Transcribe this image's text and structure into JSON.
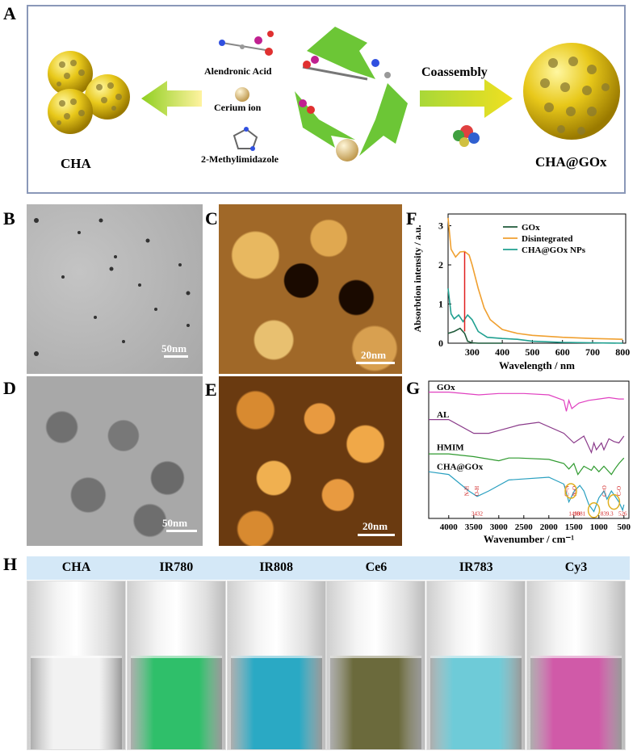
{
  "panels": {
    "A": "A",
    "B": "B",
    "C": "C",
    "D": "D",
    "E": "E",
    "F": "F",
    "G": "G",
    "H": "H"
  },
  "scheme": {
    "left_label": "CHA",
    "right_label": "CHA@GOx",
    "reagents": [
      "Alendronic Acid",
      "Cerium ion",
      "2-Methylimidazole"
    ],
    "coassembly": "Coassembly"
  },
  "micrographs": {
    "B_scale": "50nm",
    "C_scale": "20nm",
    "D_scale": "50nm",
    "E_scale": "20nm"
  },
  "chart_data": [
    {
      "type": "line",
      "panel": "F",
      "xlabel": "Wavelength / nm",
      "ylabel": "Absorbtion intensity / a.u.",
      "xlim": [
        220,
        810
      ],
      "ylim": [
        0,
        3.3
      ],
      "xticks": [
        300,
        400,
        500,
        600,
        700,
        800
      ],
      "yticks": [
        0,
        1,
        2,
        3
      ],
      "legend_position": "top-right",
      "series": [
        {
          "name": "GOx",
          "color": "#1f5a3a",
          "x": [
            220,
            240,
            260,
            275,
            285,
            300,
            320,
            350,
            400
          ],
          "y": [
            0.25,
            0.3,
            0.38,
            0.25,
            0.05,
            0.01,
            0.0,
            0.0,
            0.0
          ]
        },
        {
          "name": "Disintegrated",
          "color": "#f0a030",
          "x": [
            220,
            230,
            245,
            260,
            275,
            290,
            300,
            320,
            340,
            360,
            400,
            450,
            500,
            600,
            700,
            800
          ],
          "y": [
            3.2,
            2.4,
            2.2,
            2.33,
            2.34,
            2.25,
            2.0,
            1.4,
            0.9,
            0.6,
            0.35,
            0.25,
            0.2,
            0.15,
            0.12,
            0.1
          ]
        },
        {
          "name": "CHA@GOx NPs",
          "color": "#20a090",
          "x": [
            220,
            230,
            240,
            255,
            270,
            285,
            300,
            320,
            350,
            400,
            450,
            500,
            600,
            800
          ],
          "y": [
            1.4,
            0.75,
            0.62,
            0.72,
            0.55,
            0.72,
            0.6,
            0.3,
            0.15,
            0.12,
            0.1,
            0.05,
            0.02,
            0.0
          ]
        }
      ],
      "annotations": [
        {
          "type": "vline",
          "x": 275,
          "color": "#e02020"
        }
      ]
    },
    {
      "type": "line",
      "panel": "G",
      "xlabel": "Wavenumber / cm⁻¹",
      "ylabel": "",
      "xlim": [
        4400,
        400
      ],
      "xticks": [
        4000,
        3500,
        3000,
        2500,
        2000,
        1500,
        1000,
        500
      ],
      "series": [
        {
          "name": "GOx",
          "color": "#e040c0",
          "x": [
            4400,
            4000,
            3400,
            3000,
            2500,
            2000,
            1700,
            1650,
            1600,
            1540,
            1400,
            1200,
            1000,
            800,
            600,
            500
          ],
          "y": [
            0.92,
            0.92,
            0.9,
            0.91,
            0.91,
            0.9,
            0.86,
            0.78,
            0.86,
            0.8,
            0.84,
            0.86,
            0.87,
            0.88,
            0.87,
            0.87
          ]
        },
        {
          "name": "AL",
          "color": "#8a3a8a",
          "x": [
            4400,
            4000,
            3500,
            3200,
            3000,
            2600,
            2200,
            1700,
            1500,
            1300,
            1150,
            1100,
            1050,
            950,
            900,
            800,
            700,
            600,
            500
          ],
          "y": [
            0.72,
            0.72,
            0.62,
            0.62,
            0.64,
            0.68,
            0.7,
            0.62,
            0.55,
            0.6,
            0.48,
            0.55,
            0.5,
            0.55,
            0.5,
            0.58,
            0.56,
            0.55,
            0.6
          ]
        },
        {
          "name": "HMIM",
          "color": "#2f9a2f",
          "x": [
            4400,
            4000,
            3500,
            3000,
            2800,
            2600,
            2000,
            1700,
            1600,
            1500,
            1420,
            1300,
            1150,
            1100,
            1000,
            900,
            750,
            680,
            600,
            500
          ],
          "y": [
            0.47,
            0.47,
            0.45,
            0.42,
            0.44,
            0.44,
            0.43,
            0.4,
            0.36,
            0.4,
            0.32,
            0.38,
            0.35,
            0.38,
            0.34,
            0.38,
            0.32,
            0.36,
            0.4,
            0.44
          ]
        },
        {
          "name": "CHA@GOx",
          "color": "#2aa0c0",
          "x": [
            4400,
            4000,
            3600,
            3432,
            3200,
            2800,
            2000,
            1700,
            1600,
            1490,
            1381,
            1300,
            1200,
            1100,
            1000,
            900,
            839,
            750,
            600,
            526,
            500
          ],
          "y": [
            0.34,
            0.32,
            0.2,
            0.16,
            0.2,
            0.28,
            0.3,
            0.25,
            0.12,
            0.2,
            0.24,
            0.2,
            0.1,
            0.05,
            0.15,
            0.2,
            0.14,
            0.2,
            0.12,
            0.06,
            0.1
          ]
        }
      ],
      "peak_labels": [
        {
          "x": 3432,
          "text": "3432"
        },
        {
          "x": 1490,
          "text": "1490"
        },
        {
          "x": 1381,
          "text": "1381"
        },
        {
          "x": 839,
          "text": "839.3"
        },
        {
          "x": 526,
          "text": "526"
        }
      ],
      "bond_labels": [
        {
          "x": 3600,
          "text": "N-H"
        },
        {
          "x": 3400,
          "text": "O-H"
        },
        {
          "x": 1600,
          "text": "C=N"
        },
        {
          "x": 1450,
          "text": "N-O"
        },
        {
          "x": 850,
          "text": "C=O"
        },
        {
          "x": 560,
          "text": "C-O"
        }
      ]
    }
  ],
  "vials": [
    {
      "label": "CHA",
      "color": "#f2f2f2"
    },
    {
      "label": "IR780",
      "color": "#2fbf6a"
    },
    {
      "label": "IR808",
      "color": "#2aa9c4"
    },
    {
      "label": "Ce6",
      "color": "#6b6a3c"
    },
    {
      "label": "IR783",
      "color": "#6ecbd8"
    },
    {
      "label": "Cy3",
      "color": "#d05aa8"
    }
  ]
}
